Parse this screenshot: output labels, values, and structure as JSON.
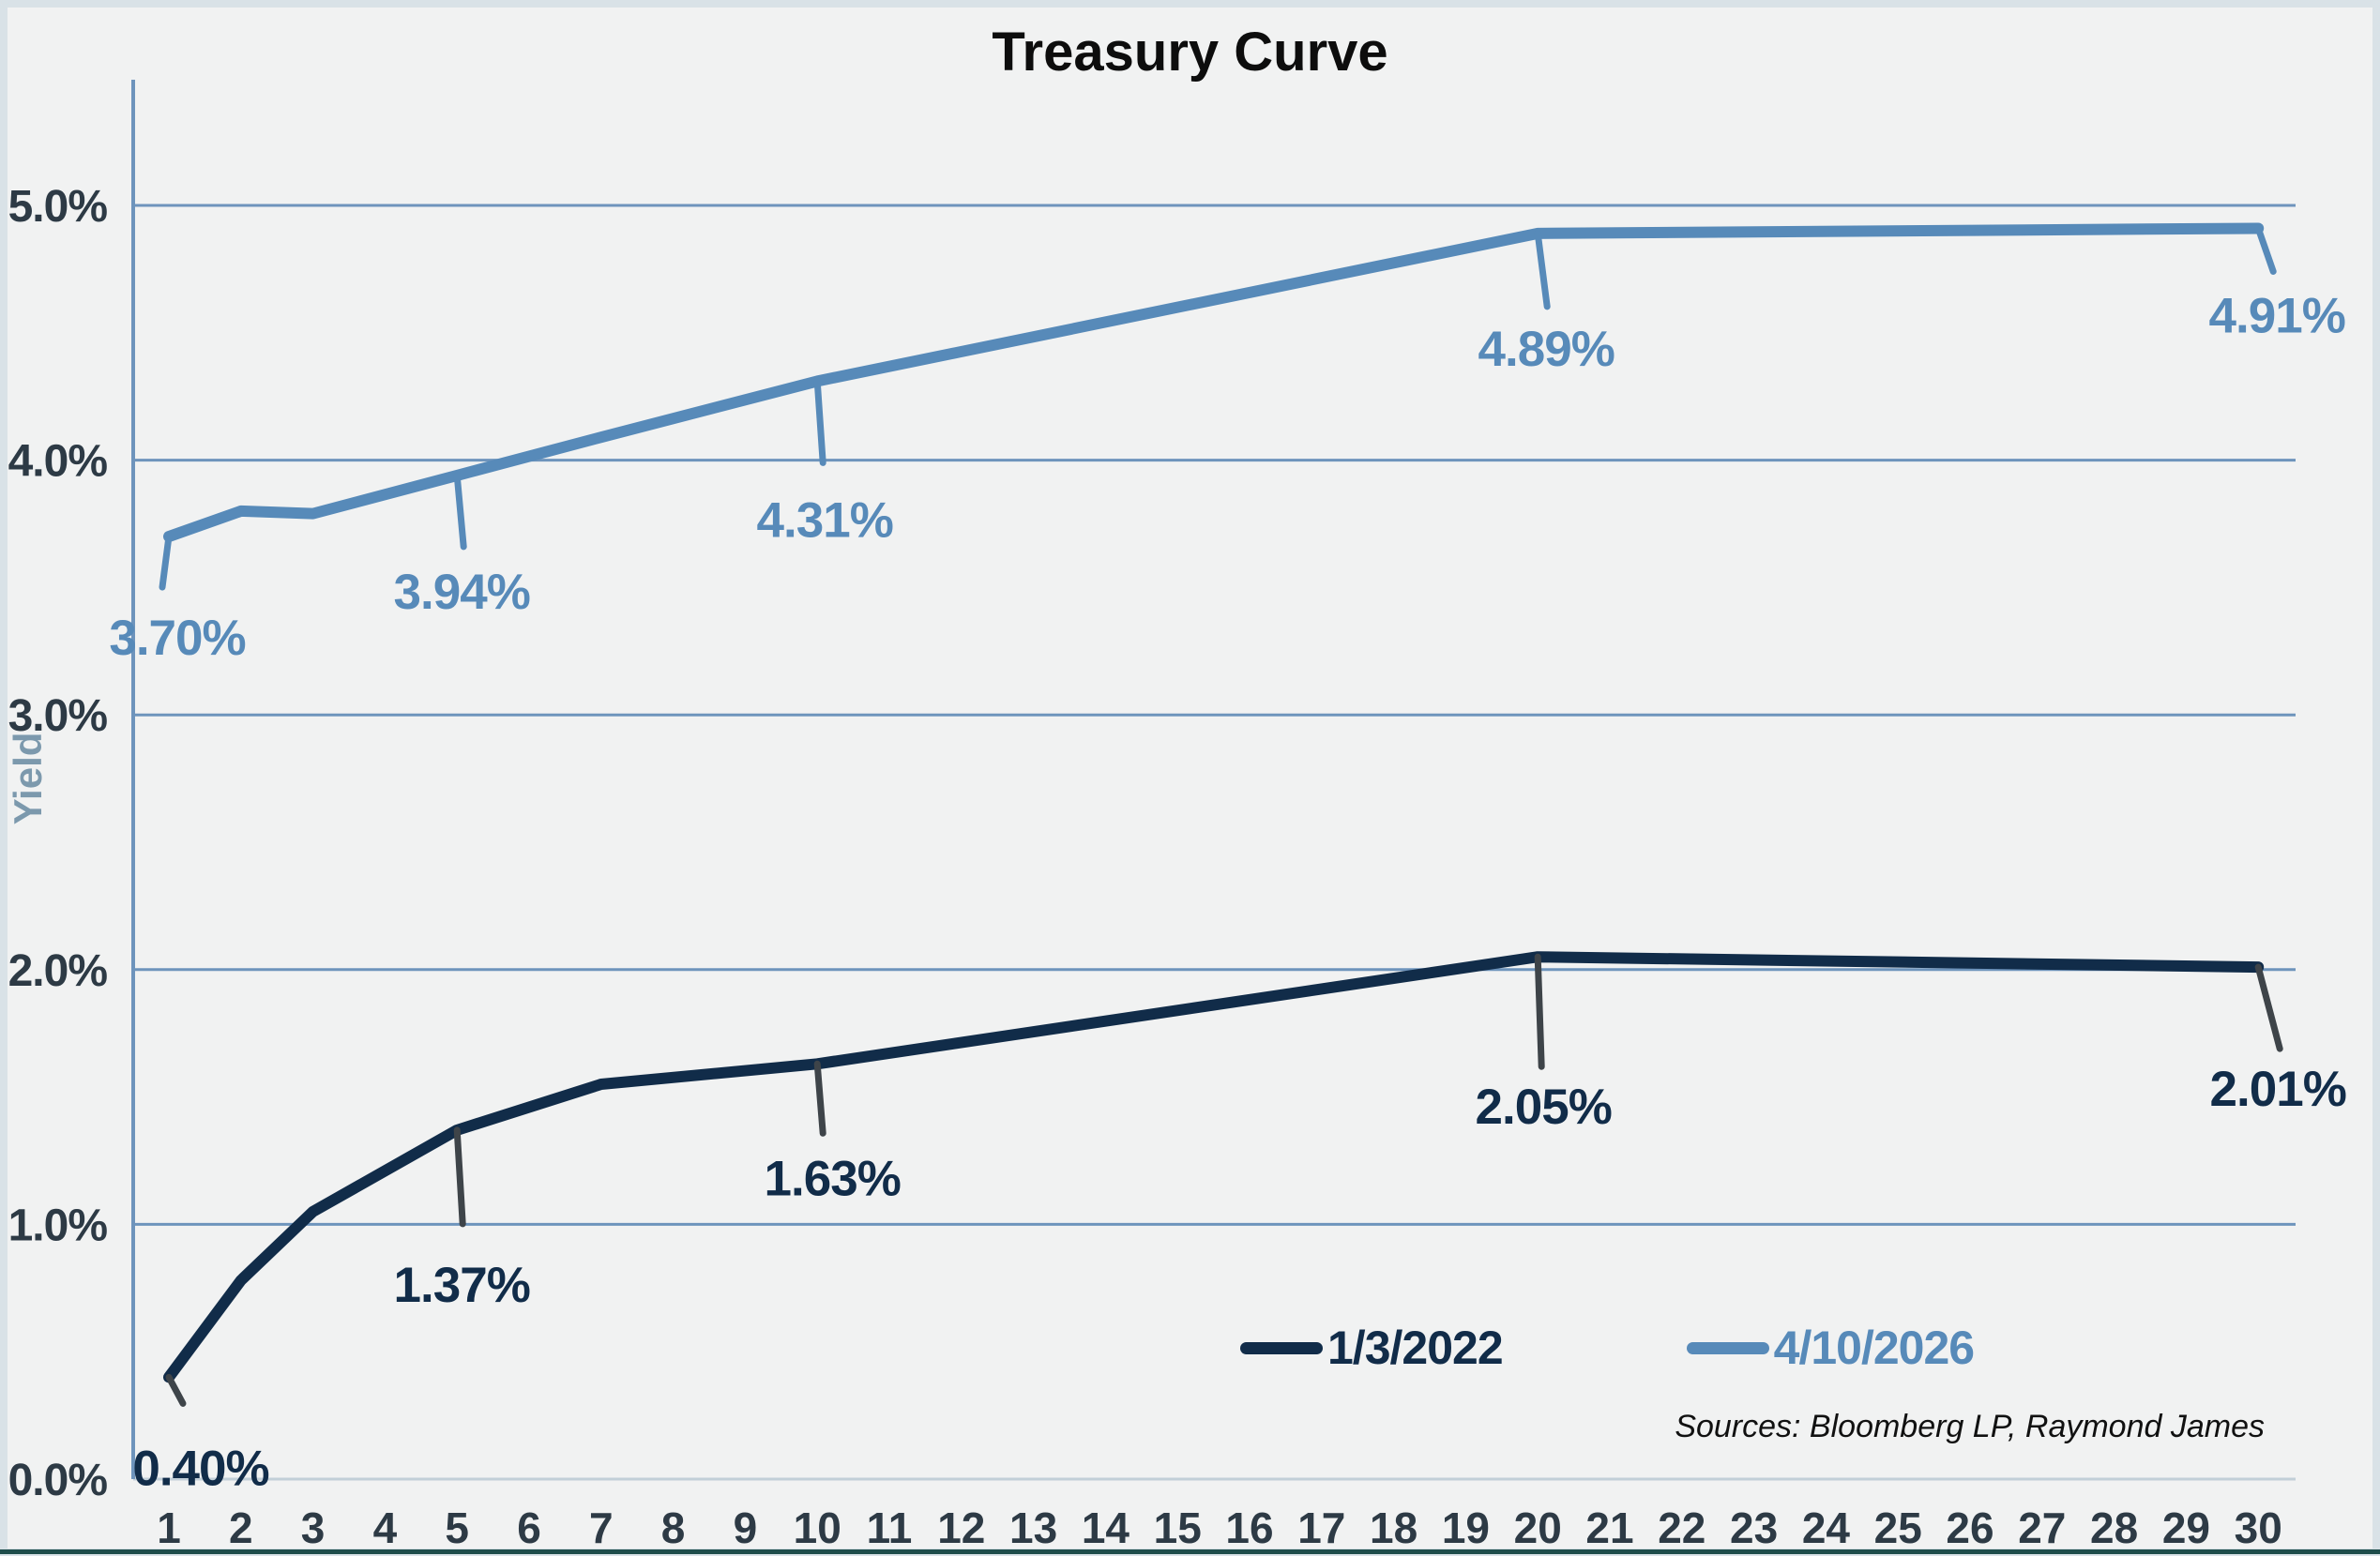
{
  "title": "Treasury Curve",
  "y_axis_title": "Yield",
  "sources_note": "Sources: Bloomberg LP, Raymond James",
  "legend": {
    "items": [
      {
        "label": "1/3/2022",
        "color": "#112c49"
      },
      {
        "label": "4/10/2026",
        "color": "#578ab9"
      }
    ]
  },
  "colors": {
    "background": "#f1f2f2",
    "frame": "#d9e2e7",
    "frame_bottom": "#1e4d4b",
    "gridline": "#6e94bc",
    "zero_line": "#c2cfd8",
    "tick_label": "#2d3a45",
    "title": "#0d0d0d",
    "ylabel": "#7c99ad",
    "leader_dark": "#3e4449",
    "series_dark": "#112c49",
    "series_light": "#578ab9"
  },
  "chart_data": {
    "type": "line",
    "title": "Treasury Curve",
    "xlabel": "",
    "ylabel": "Yield",
    "grid": "horizontal",
    "legend_position": "bottom-right",
    "x_maturities": [
      1,
      2,
      3,
      5,
      7,
      10,
      20,
      30
    ],
    "series": [
      {
        "name": "1/3/2022",
        "color": "#112c49",
        "values": [
          0.4,
          0.78,
          1.05,
          1.37,
          1.55,
          1.63,
          2.05,
          2.01
        ]
      },
      {
        "name": "4/10/2026",
        "color": "#578ab9",
        "values": [
          3.7,
          3.8,
          3.79,
          3.94,
          4.09,
          4.31,
          4.89,
          4.91
        ]
      }
    ],
    "data_labels": [
      {
        "series": 0,
        "x": 1,
        "text": "0.40%"
      },
      {
        "series": 0,
        "x": 5,
        "text": "1.37%"
      },
      {
        "series": 0,
        "x": 10,
        "text": "1.63%"
      },
      {
        "series": 0,
        "x": 20,
        "text": "2.05%"
      },
      {
        "series": 0,
        "x": 30,
        "text": "2.01%"
      },
      {
        "series": 1,
        "x": 1,
        "text": "3.70%"
      },
      {
        "series": 1,
        "x": 5,
        "text": "3.94%"
      },
      {
        "series": 1,
        "x": 10,
        "text": "4.31%"
      },
      {
        "series": 1,
        "x": 20,
        "text": "4.89%"
      },
      {
        "series": 1,
        "x": 30,
        "text": "4.91%"
      }
    ],
    "x_tick_labels": [
      "1",
      "2",
      "3",
      "4",
      "5",
      "6",
      "7",
      "8",
      "9",
      "10",
      "11",
      "12",
      "13",
      "14",
      "15",
      "16",
      "17",
      "18",
      "19",
      "20",
      "21",
      "22",
      "23",
      "24",
      "25",
      "26",
      "27",
      "28",
      "29",
      "30"
    ],
    "y_tick_labels": [
      "0.0%",
      "1.0%",
      "2.0%",
      "3.0%",
      "4.0%",
      "5.0%"
    ],
    "y_tick_values": [
      0,
      1,
      2,
      3,
      4,
      5
    ],
    "ylim": [
      0,
      5.5
    ]
  }
}
